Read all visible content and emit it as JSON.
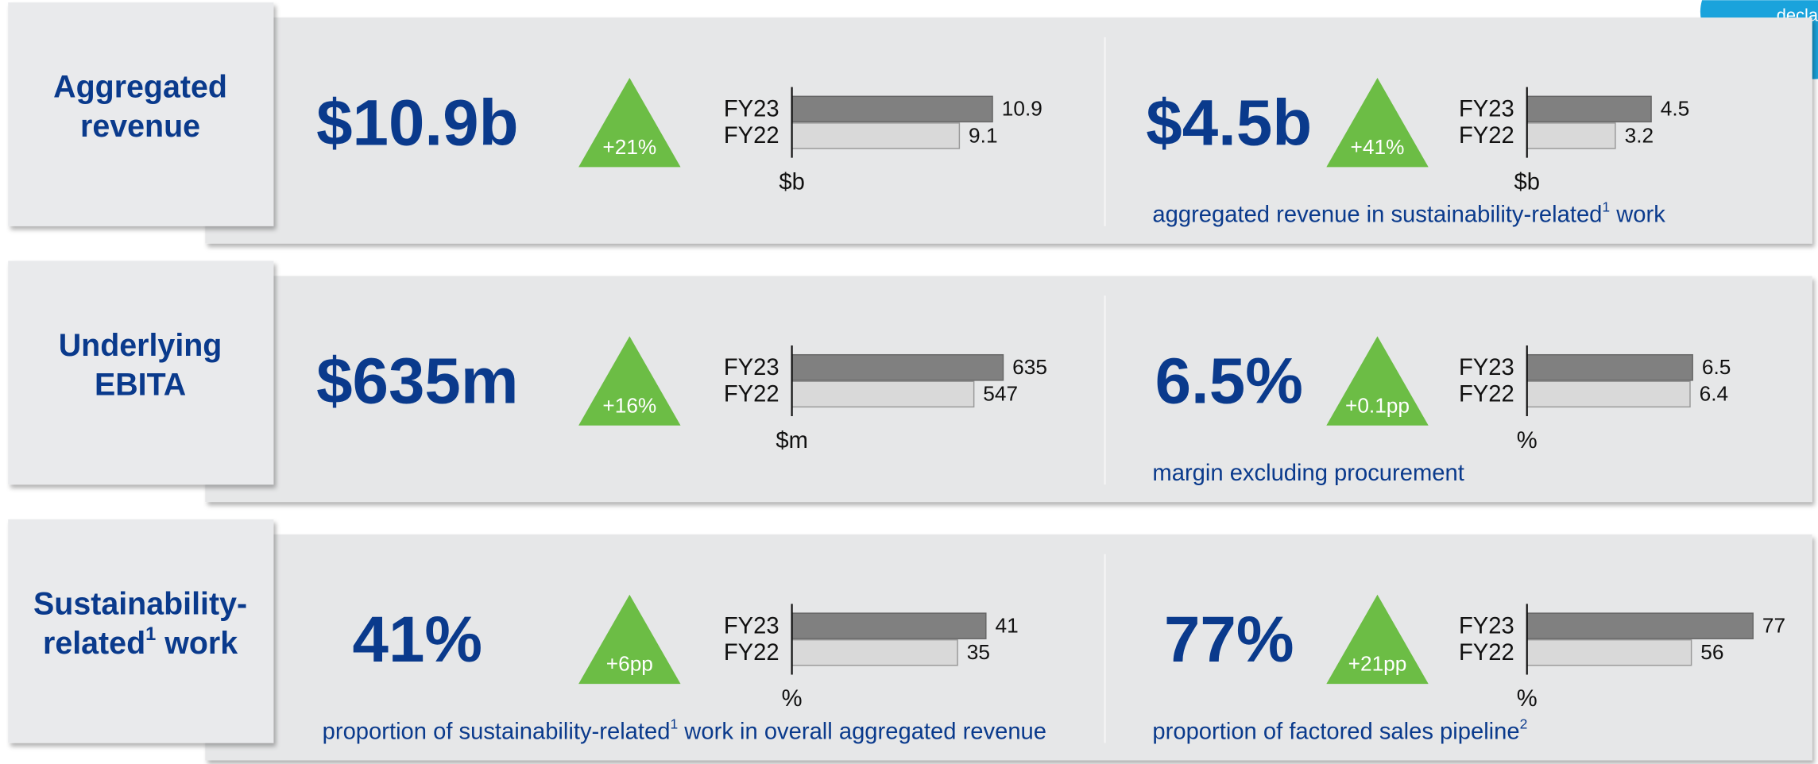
{
  "corner_text": "decla",
  "rows": [
    {
      "label": {
        "text": "Aggregated revenue"
      },
      "panels": [
        {
          "headline": "$10.9b",
          "change": "+21%",
          "chart": {
            "categories": [
              "FY23",
              "FY22"
            ],
            "values": [
              10.9,
              9.1
            ],
            "xlim": [
              0,
              12.6
            ],
            "unit": "$b"
          }
        },
        {
          "headline": "$4.5b",
          "change": "+41%",
          "chart": {
            "categories": [
              "FY23",
              "FY22"
            ],
            "values": [
              4.5,
              3.2
            ],
            "xlim": [
              0,
              8.4
            ],
            "unit": "$b"
          },
          "caption": {
            "text": "aggregated revenue in sustainability-related",
            "sup": "1",
            "after": " work"
          }
        }
      ]
    },
    {
      "label": {
        "text": "Underlying EBITA"
      },
      "panels": [
        {
          "headline": "$635m",
          "change": "+16%",
          "chart": {
            "categories": [
              "FY23",
              "FY22"
            ],
            "values": [
              635,
              547
            ],
            "xlim": [
              0,
              697
            ],
            "unit": "$m"
          }
        },
        {
          "headline": "6.5%",
          "change": "+0.1pp",
          "chart": {
            "categories": [
              "FY23",
              "FY22"
            ],
            "values": [
              6.5,
              6.4
            ],
            "xlim": [
              0,
              9.1
            ],
            "unit": "%"
          },
          "caption": {
            "text": "margin excluding procurement"
          }
        }
      ]
    },
    {
      "label": {
        "text": "Sustainability-related",
        "sup": "1",
        "after": " work"
      },
      "panels": [
        {
          "headline": "41%",
          "change": "+6pp",
          "chart": {
            "categories": [
              "FY23",
              "FY22"
            ],
            "values": [
              41,
              35
            ],
            "xlim": [
              0,
              49
            ],
            "unit": "%"
          },
          "caption": {
            "text": "proportion of sustainability-related",
            "sup": "1",
            "after": " work in overall aggregated revenue"
          }
        },
        {
          "headline": "77%",
          "change": "+21pp",
          "chart": {
            "categories": [
              "FY23",
              "FY22"
            ],
            "values": [
              77,
              56
            ],
            "xlim": [
              0,
              79
            ],
            "unit": "%"
          },
          "caption": {
            "text": "proportion of factored sales pipeline",
            "sup": "2"
          }
        }
      ]
    }
  ]
}
